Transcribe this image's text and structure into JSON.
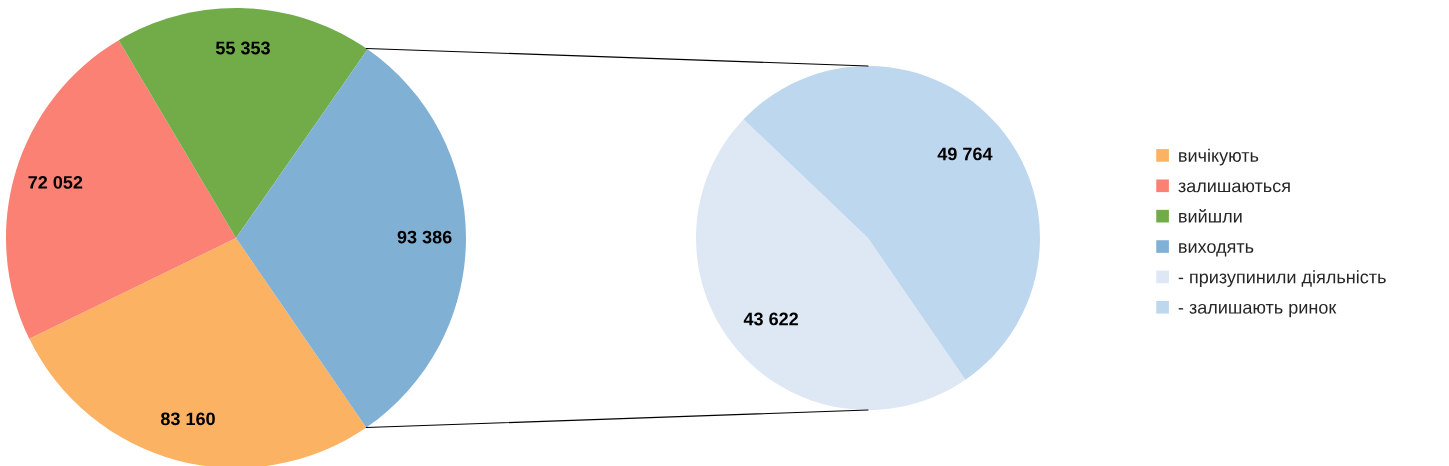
{
  "chart_data": [
    {
      "type": "pie",
      "categories": [
        "вичікують",
        "залишаються",
        "вийшли",
        "виходять"
      ],
      "values": [
        83160,
        72052,
        55353,
        93386
      ],
      "colors": [
        "#fbb262",
        "#fa8173",
        "#71ac48",
        "#80b0d4"
      ],
      "value_labels": [
        "83 160",
        "72 052",
        "55 353",
        "93 386"
      ],
      "legend": "right"
    },
    {
      "type": "pie",
      "categories": [
        "- призупинили діяльність",
        "- залишають ринок"
      ],
      "values": [
        43622,
        49764
      ],
      "colors": [
        "#dde8f4",
        "#bdd7ee"
      ],
      "value_labels": [
        "43 622",
        "49 764"
      ],
      "legend": "right"
    }
  ]
}
